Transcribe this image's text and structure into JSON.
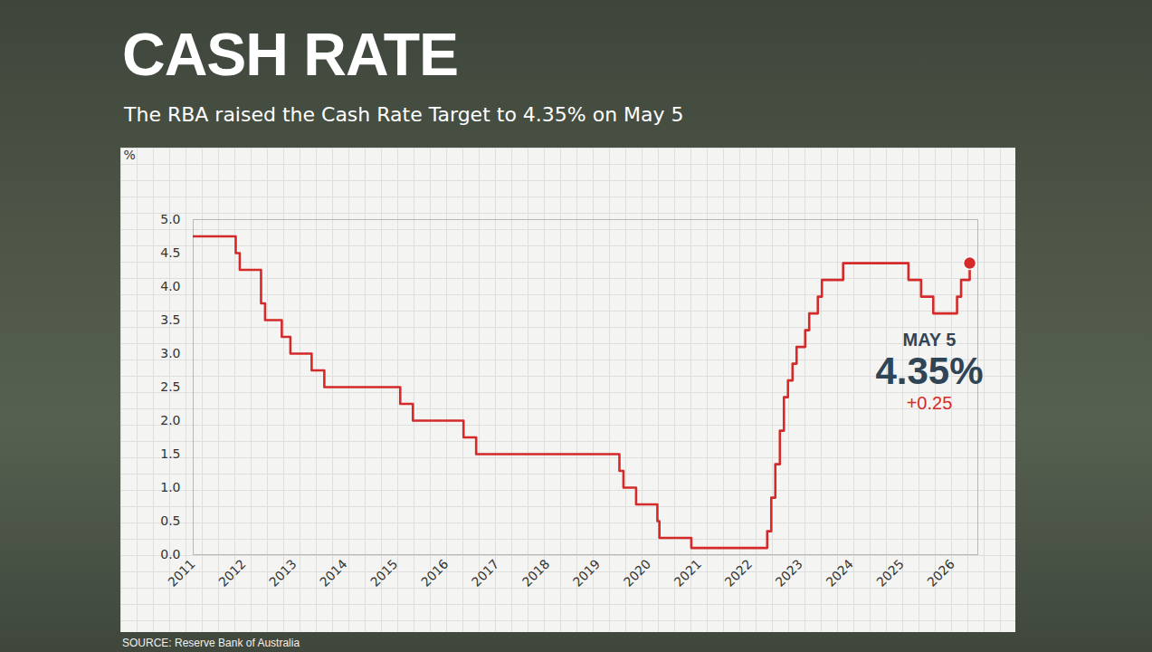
{
  "chart_data": {
    "type": "line",
    "title": "CASH RATE",
    "subtitle": "The RBA raised the Cash Rate Target to 4.35% on May 5",
    "source": "SOURCE: Reserve Bank of Australia",
    "y_label": "%",
    "annotation": {
      "date_label": "MAY 5",
      "value_label": "4.35%",
      "change_label": "+0.25"
    },
    "x": [
      2011.0,
      2011.84,
      2011.92,
      2012.34,
      2012.42,
      2012.75,
      2012.92,
      2013.34,
      2013.59,
      2015.09,
      2015.34,
      2016.34,
      2016.59,
      2019.42,
      2019.5,
      2019.75,
      2020.17,
      2020.21,
      2020.84,
      2022.34,
      2022.42,
      2022.5,
      2022.59,
      2022.67,
      2022.75,
      2022.84,
      2022.92,
      2023.09,
      2023.17,
      2023.34,
      2023.42,
      2023.84,
      2025.13,
      2025.38,
      2025.62,
      2026.09,
      2026.17,
      2026.34
    ],
    "series": [
      {
        "color": "#d42a2a",
        "line_style": "step",
        "marker": "end_dot",
        "values": [
          4.75,
          4.5,
          4.25,
          3.75,
          3.5,
          3.25,
          3.0,
          2.75,
          2.5,
          2.25,
          2.0,
          1.75,
          1.5,
          1.25,
          1.0,
          0.75,
          0.5,
          0.25,
          0.1,
          0.35,
          0.85,
          1.35,
          1.85,
          2.35,
          2.6,
          2.85,
          3.1,
          3.35,
          3.6,
          3.85,
          4.1,
          4.35,
          4.1,
          3.85,
          3.6,
          3.85,
          4.1,
          4.35
        ]
      }
    ],
    "xlim": [
      2011,
      2026.5
    ],
    "xticks": [
      2011,
      2012,
      2013,
      2014,
      2015,
      2016,
      2017,
      2018,
      2019,
      2020,
      2021,
      2022,
      2023,
      2024,
      2025,
      2026
    ],
    "ylim": [
      0,
      5
    ],
    "yticks": [
      {
        "value": 0,
        "label": "0.0"
      },
      0.5,
      {
        "value": 1,
        "label": "1.0"
      },
      1.5,
      {
        "value": 2,
        "label": "2.0"
      },
      2.5,
      {
        "value": 3,
        "label": "3.0"
      },
      3.5,
      {
        "value": 4,
        "label": "4.0"
      },
      4.5,
      {
        "value": 5,
        "label": "5.0"
      }
    ]
  }
}
